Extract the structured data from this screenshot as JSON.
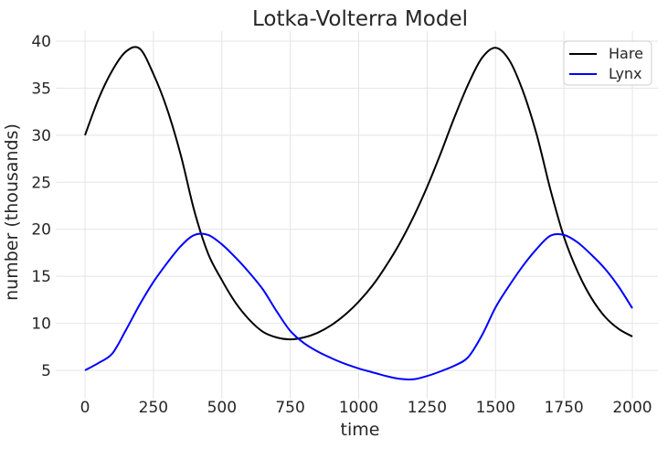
{
  "figure": {
    "title": "Lotka-Volterra Model",
    "xlabel": "time",
    "ylabel": "number (thousands)"
  },
  "chart_data": {
    "type": "line",
    "title": "Lotka-Volterra Model",
    "xlabel": "time",
    "ylabel": "number (thousands)",
    "grid": true,
    "legend_position": "upper right",
    "xlim": [
      -100,
      2100
    ],
    "ylim": [
      2.2,
      41.1
    ],
    "x_ticks": [
      0,
      250,
      500,
      750,
      1000,
      1250,
      1500,
      1750,
      2000
    ],
    "y_ticks": [
      5,
      10,
      15,
      20,
      25,
      30,
      35,
      40
    ],
    "x": [
      0,
      50,
      100,
      150,
      200,
      250,
      300,
      350,
      400,
      450,
      500,
      550,
      600,
      650,
      700,
      750,
      800,
      850,
      900,
      950,
      1000,
      1050,
      1100,
      1150,
      1200,
      1250,
      1300,
      1350,
      1400,
      1450,
      1500,
      1550,
      1600,
      1650,
      1700,
      1750,
      1800,
      1850,
      1900,
      1950,
      2000
    ],
    "series": [
      {
        "name": "Hare",
        "color": "#000000",
        "values": [
          30.0,
          33.9,
          36.9,
          38.9,
          39.2,
          36.5,
          32.8,
          27.9,
          21.9,
          17.4,
          14.6,
          12.2,
          10.4,
          9.1,
          8.5,
          8.3,
          8.5,
          9.0,
          9.8,
          10.9,
          12.3,
          14.0,
          16.1,
          18.5,
          21.3,
          24.5,
          28.1,
          31.9,
          35.4,
          38.2,
          39.3,
          38.0,
          34.7,
          30.1,
          24.3,
          19.2,
          15.5,
          12.7,
          10.7,
          9.4,
          8.6
        ],
        "peaks": [
          {
            "t": 180,
            "value": 39.3
          },
          {
            "t": 1495,
            "value": 39.3
          }
        ],
        "min": {
          "t": 730,
          "value": 8.3
        }
      },
      {
        "name": "Lynx",
        "color": "#0000ff",
        "values": [
          5.0,
          5.8,
          6.8,
          9.3,
          12.0,
          14.4,
          16.4,
          18.2,
          19.4,
          19.4,
          18.4,
          17.0,
          15.4,
          13.6,
          11.3,
          9.2,
          7.9,
          7.0,
          6.3,
          5.7,
          5.2,
          4.8,
          4.4,
          4.1,
          4.05,
          4.4,
          4.9,
          5.5,
          6.4,
          8.7,
          11.7,
          14.0,
          16.1,
          17.9,
          19.3,
          19.4,
          18.6,
          17.3,
          15.8,
          13.9,
          11.6
        ],
        "peaks": [
          {
            "t": 414,
            "value": 19.6
          },
          {
            "t": 1720,
            "value": 19.6
          }
        ],
        "min": {
          "t": 1175,
          "value": 4.0
        }
      }
    ]
  },
  "legend": {
    "entries": [
      {
        "label": "Hare",
        "color": "#000000"
      },
      {
        "label": "Lynx",
        "color": "#0000ff"
      }
    ]
  },
  "colors": {
    "background": "#ffffff",
    "grid": "#e4e4e4",
    "text": "#262626",
    "hare_line": "#000000",
    "lynx_line": "#0000ff",
    "legend_border": "#cccccc"
  }
}
